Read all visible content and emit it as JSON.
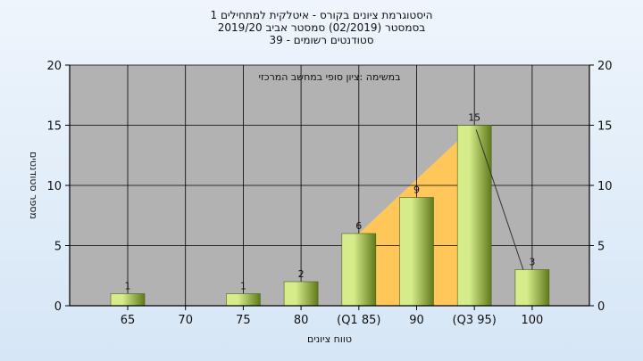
{
  "chart_data": {
    "type": "bar",
    "title": [
      "היסטוגרמת ציונים בקורס - איטלקית למתחילים 1",
      "בסמסטר  (02/2019)  סמסטר אביב 2019/20",
      "סטודנטים רשומים - 39"
    ],
    "annotation": "במשימה :ציון סופי במחשב המרכזי",
    "categories": [
      "65",
      "70",
      "75",
      "80",
      "(Q1 85)",
      "90",
      "(Q3 95)",
      "100"
    ],
    "values": [
      1,
      0,
      1,
      2,
      6,
      9,
      15,
      3
    ],
    "data_labels": [
      "1",
      "",
      "1",
      "2",
      "6",
      "9",
      "15",
      "3"
    ],
    "xlabel": "טווח ציונים",
    "ylabel": "מספר סטודנטים",
    "ylim": [
      0,
      20
    ],
    "yticks": [
      0,
      5,
      10,
      15,
      20
    ],
    "grid": true,
    "colors": {
      "plot_bg": "#b2b2b2",
      "bar_light": "#d6ec8a",
      "bar_dark": "#5f7a1c",
      "highlight": "#ffc65a",
      "lowlight": "#c8c8c8",
      "grid": "#000000"
    }
  }
}
